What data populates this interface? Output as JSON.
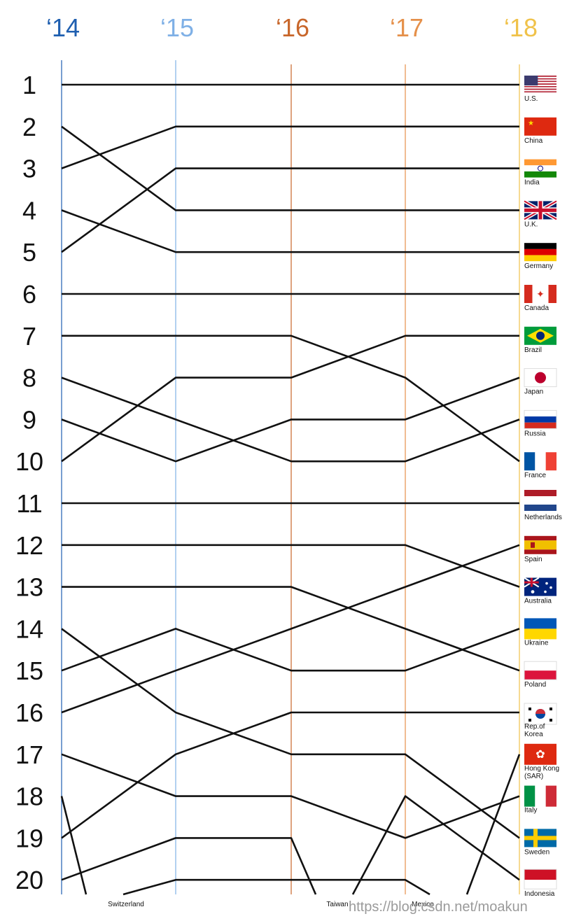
{
  "chart_data": {
    "type": "line",
    "subtype": "bump",
    "title": "",
    "x": [
      "‘14",
      "‘15",
      "‘16",
      "‘17",
      "‘18"
    ],
    "year_colors": [
      "#1f5fb0",
      "#7fb0e6",
      "#c8662a",
      "#e5904a",
      "#f0c24a"
    ],
    "ranks": [
      1,
      2,
      3,
      4,
      5,
      6,
      7,
      8,
      9,
      10,
      11,
      12,
      13,
      14,
      15,
      16,
      17,
      18,
      19,
      20
    ],
    "ylim": [
      1,
      20
    ],
    "y_inverted": true,
    "series": [
      {
        "name": "U.S.",
        "values": [
          1,
          1,
          1,
          1,
          1
        ]
      },
      {
        "name": "China",
        "values": [
          3,
          2,
          2,
          2,
          2
        ]
      },
      {
        "name": "India",
        "values": [
          5,
          3,
          3,
          3,
          3
        ]
      },
      {
        "name": "U.K.",
        "values": [
          2,
          4,
          4,
          4,
          4
        ]
      },
      {
        "name": "Germany",
        "values": [
          4,
          5,
          5,
          5,
          5
        ]
      },
      {
        "name": "Canada",
        "values": [
          6,
          6,
          6,
          6,
          6
        ]
      },
      {
        "name": "Brazil",
        "values": [
          10,
          8,
          8,
          7,
          7
        ]
      },
      {
        "name": "Japan",
        "values": [
          9,
          10,
          9,
          9,
          8
        ]
      },
      {
        "name": "Russia",
        "values": [
          8,
          9,
          10,
          10,
          9
        ]
      },
      {
        "name": "France",
        "values": [
          7,
          7,
          7,
          8,
          10
        ]
      },
      {
        "name": "Netherlands",
        "values": [
          11,
          11,
          11,
          11,
          11
        ]
      },
      {
        "name": "Spain",
        "values": [
          16,
          15,
          14,
          13,
          12
        ]
      },
      {
        "name": "Australia",
        "values": [
          12,
          12,
          12,
          12,
          13
        ]
      },
      {
        "name": "Ukraine",
        "values": [
          15,
          14,
          15,
          15,
          14
        ]
      },
      {
        "name": "Poland",
        "values": [
          13,
          13,
          13,
          14,
          15
        ]
      },
      {
        "name": "Rep.of Korea",
        "values": [
          19,
          17,
          16,
          16,
          16
        ]
      },
      {
        "name": "Hong Kong (SAR)",
        "values": [
          null,
          null,
          null,
          null,
          17
        ]
      },
      {
        "name": "Italy",
        "values": [
          17,
          18,
          18,
          19,
          18
        ]
      },
      {
        "name": "Sweden",
        "values": [
          14,
          16,
          17,
          17,
          19
        ]
      },
      {
        "name": "Indonesia",
        "values": [
          null,
          null,
          null,
          18,
          20
        ]
      },
      {
        "name": "Switzerland",
        "values": [
          18,
          null,
          null,
          null,
          null
        ]
      },
      {
        "name": "Taiwan",
        "values": [
          20,
          19,
          19,
          null,
          null
        ]
      },
      {
        "name": "Mexico",
        "values": [
          null,
          20,
          20,
          20,
          null
        ]
      }
    ],
    "legend_right": [
      "U.S.",
      "China",
      "India",
      "U.K.",
      "Germany",
      "Canada",
      "Brazil",
      "Japan",
      "Russia",
      "France",
      "Netherlands",
      "Spain",
      "Australia",
      "Ukraine",
      "Poland",
      "Rep.of Korea",
      "Hong Kong (SAR)",
      "Italy",
      "Sweden",
      "Indonesia"
    ],
    "bottom_labels": [
      "Switzerland",
      "Taiwan",
      "Mexico"
    ],
    "grid": false,
    "legend_position": "right"
  },
  "watermark": "https://blog.csdn.net/moakun"
}
